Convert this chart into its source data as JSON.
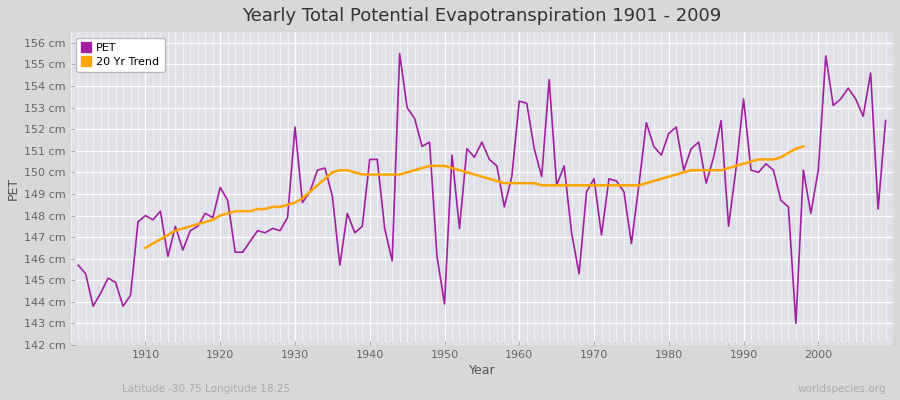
{
  "title": "Yearly Total Potential Evapotranspiration 1901 - 2009",
  "xlabel": "Year",
  "ylabel": "PET",
  "bottom_left_label": "Latitude -30.75 Longitude 18.25",
  "bottom_right_label": "worldspecies.org",
  "pet_color": "#a020a0",
  "trend_color": "#ffa500",
  "fig_facecolor": "#d8d8d8",
  "plot_facecolor": "#e0e0e8",
  "ylim": [
    142,
    156.5
  ],
  "xlim": [
    1900,
    2010
  ],
  "xticks": [
    1910,
    1920,
    1930,
    1940,
    1950,
    1960,
    1970,
    1980,
    1990,
    2000
  ],
  "years": [
    1901,
    1902,
    1903,
    1904,
    1905,
    1906,
    1907,
    1908,
    1909,
    1910,
    1911,
    1912,
    1913,
    1914,
    1915,
    1916,
    1917,
    1918,
    1919,
    1920,
    1921,
    1922,
    1923,
    1924,
    1925,
    1926,
    1927,
    1928,
    1929,
    1930,
    1931,
    1932,
    1933,
    1934,
    1935,
    1936,
    1937,
    1938,
    1939,
    1940,
    1941,
    1942,
    1943,
    1944,
    1945,
    1946,
    1947,
    1948,
    1949,
    1950,
    1951,
    1952,
    1953,
    1954,
    1955,
    1956,
    1957,
    1958,
    1959,
    1960,
    1961,
    1962,
    1963,
    1964,
    1965,
    1966,
    1967,
    1968,
    1969,
    1970,
    1971,
    1972,
    1973,
    1974,
    1975,
    1976,
    1977,
    1978,
    1979,
    1980,
    1981,
    1982,
    1983,
    1984,
    1985,
    1986,
    1987,
    1988,
    1989,
    1990,
    1991,
    1992,
    1993,
    1994,
    1995,
    1996,
    1997,
    1998,
    1999,
    2000,
    2001,
    2002,
    2003,
    2004,
    2005,
    2006,
    2007,
    2008,
    2009
  ],
  "pet_values": [
    145.7,
    145.3,
    143.8,
    144.4,
    145.1,
    144.9,
    143.8,
    144.3,
    147.7,
    148.0,
    147.8,
    148.2,
    146.1,
    147.5,
    146.4,
    147.3,
    147.5,
    148.1,
    147.9,
    149.3,
    148.7,
    146.3,
    146.3,
    146.8,
    147.3,
    147.2,
    147.4,
    147.3,
    147.9,
    152.1,
    148.6,
    149.1,
    150.1,
    150.2,
    148.9,
    145.7,
    148.1,
    147.2,
    147.5,
    150.6,
    150.6,
    147.4,
    145.9,
    155.5,
    153.0,
    152.5,
    151.2,
    151.4,
    146.1,
    143.9,
    150.8,
    147.4,
    151.1,
    150.7,
    151.4,
    150.6,
    150.3,
    148.4,
    149.8,
    153.3,
    153.2,
    151.1,
    149.8,
    154.3,
    149.4,
    150.3,
    147.2,
    145.3,
    149.1,
    149.7,
    147.1,
    149.7,
    149.6,
    149.1,
    146.7,
    149.4,
    152.3,
    151.2,
    150.8,
    151.8,
    152.1,
    150.1,
    151.1,
    151.4,
    149.5,
    150.7,
    152.4,
    147.5,
    150.2,
    153.4,
    150.1,
    150.0,
    150.4,
    150.1,
    148.7,
    148.4,
    143.0,
    150.1,
    148.1,
    150.1,
    155.4,
    153.1,
    153.4,
    153.9,
    153.4,
    152.6,
    154.6,
    148.3,
    152.4
  ],
  "trend_values": [
    null,
    null,
    null,
    null,
    null,
    null,
    null,
    null,
    null,
    146.5,
    146.7,
    146.9,
    147.1,
    147.3,
    147.4,
    147.5,
    147.6,
    147.7,
    147.8,
    148.0,
    148.1,
    148.2,
    148.2,
    148.2,
    148.3,
    148.3,
    148.4,
    148.4,
    148.5,
    148.6,
    148.8,
    149.1,
    149.4,
    149.7,
    150.0,
    150.1,
    150.1,
    150.0,
    149.9,
    149.9,
    149.9,
    149.9,
    149.9,
    149.9,
    150.0,
    150.1,
    150.2,
    150.3,
    150.3,
    150.3,
    150.2,
    150.1,
    150.0,
    149.9,
    149.8,
    149.7,
    149.6,
    149.5,
    149.5,
    149.5,
    149.5,
    149.5,
    149.4,
    149.4,
    149.4,
    149.4,
    149.4,
    149.4,
    149.4,
    149.4,
    149.4,
    149.4,
    149.4,
    149.4,
    149.4,
    149.4,
    149.5,
    149.6,
    149.7,
    149.8,
    149.9,
    150.0,
    150.1,
    150.1,
    150.1,
    150.1,
    150.1,
    150.2,
    150.3,
    150.4,
    150.5,
    150.6,
    150.6,
    150.6,
    150.7,
    150.9,
    151.1,
    151.2,
    null,
    null,
    null,
    null,
    null,
    null,
    null,
    null,
    null,
    null
  ]
}
